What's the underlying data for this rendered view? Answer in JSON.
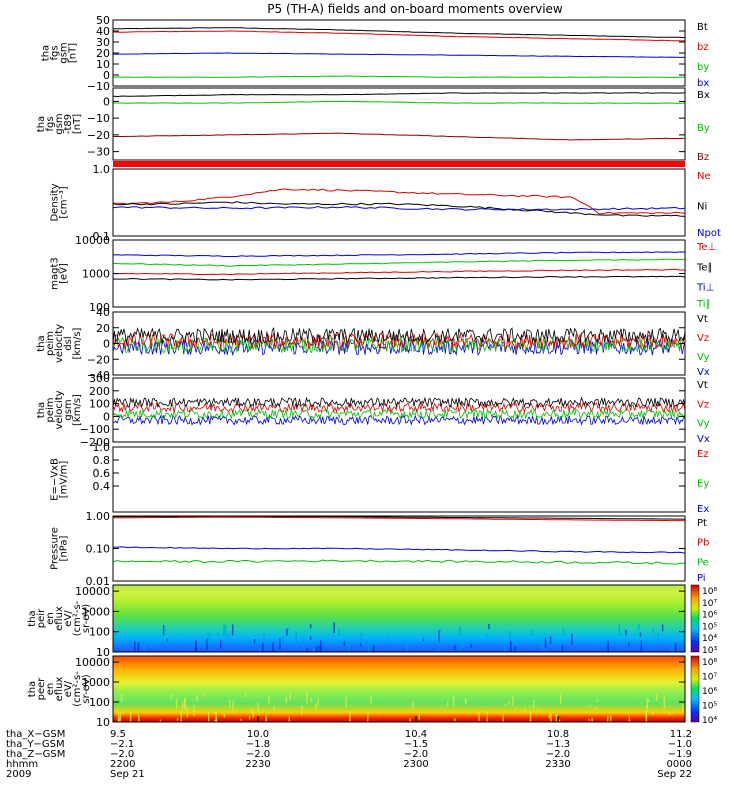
{
  "title": "P5 (TH-A) fields and on-board moments overview",
  "colors": {
    "black": "#000000",
    "red": "#e00000",
    "green": "#00e000",
    "blue": "#0000e0",
    "darkred": "#900000",
    "bar": "#ff0000"
  },
  "chart_data": [
    {
      "type": "line",
      "ylabel": [
        "tha",
        "fgs",
        "gsm",
        "[nT]"
      ],
      "ylim": [
        -10,
        50
      ],
      "yticks": [
        "50",
        "40",
        "30",
        "20",
        "10",
        "0",
        "−10"
      ],
      "ytick_values": [
        50,
        40,
        30,
        20,
        10,
        0,
        -10
      ],
      "legend": [
        {
          "name": "Bt",
          "color": "#000000"
        },
        {
          "name": "bz",
          "color": "#e00000"
        },
        {
          "name": "by",
          "color": "#00c000"
        },
        {
          "name": "bx",
          "color": "#0000e0"
        }
      ],
      "series": [
        {
          "name": "Bt",
          "color": "#000000",
          "x": [
            0,
            0.2,
            0.4,
            0.6,
            0.8,
            1.0
          ],
          "y": [
            42,
            43,
            41,
            38,
            36,
            34
          ]
        },
        {
          "name": "bz",
          "color": "#e00000",
          "x": [
            0,
            0.2,
            0.4,
            0.6,
            0.8,
            1.0
          ],
          "y": [
            39,
            40,
            38,
            35,
            33,
            31
          ]
        },
        {
          "name": "by",
          "color": "#00c000",
          "x": [
            0,
            0.2,
            0.4,
            0.6,
            0.8,
            1.0
          ],
          "y": [
            -2,
            -2,
            -1,
            -2,
            -2,
            -2
          ]
        },
        {
          "name": "bx",
          "color": "#0000e0",
          "x": [
            0,
            0.2,
            0.4,
            0.6,
            0.8,
            1.0
          ],
          "y": [
            19,
            20,
            19,
            18,
            17,
            16
          ]
        }
      ]
    },
    {
      "type": "line",
      "ylabel": [
        "tha",
        "fgs",
        "gsm",
        "-t89",
        "[nT]"
      ],
      "ylim": [
        -35,
        8
      ],
      "yticks": [
        "0",
        "−10",
        "−20",
        "−30"
      ],
      "ytick_values": [
        0,
        -10,
        -20,
        -30
      ],
      "legend": [
        {
          "name": "Bx",
          "color": "#000000"
        },
        {
          "name": "By",
          "color": "#00c000"
        },
        {
          "name": "Bz",
          "color": "#900000"
        }
      ],
      "series": [
        {
          "name": "Bx",
          "color": "#000000",
          "x": [
            0,
            0.2,
            0.4,
            0.6,
            0.8,
            1.0
          ],
          "y": [
            3,
            4,
            4,
            5,
            5,
            5
          ]
        },
        {
          "name": "By",
          "color": "#00c000",
          "x": [
            0,
            0.2,
            0.4,
            0.6,
            0.8,
            1.0
          ],
          "y": [
            -1,
            -1,
            0,
            -1,
            -1,
            -1
          ]
        },
        {
          "name": "Bz",
          "color": "#900000",
          "x": [
            0,
            0.2,
            0.4,
            0.6,
            0.8,
            1.0
          ],
          "y": [
            -21,
            -20,
            -19,
            -21,
            -23,
            -22
          ]
        }
      ]
    },
    {
      "type": "line",
      "ylabel": [
        "Density",
        "[cm⁻³]"
      ],
      "ylim": [
        0.1,
        1.0
      ],
      "log": true,
      "yticks": [
        "1.0",
        "0.1"
      ],
      "ytick_values": [
        1.0,
        0.1
      ],
      "legend": [
        {
          "name": "Ne",
          "color": "#e00000"
        },
        {
          "name": "Ni",
          "color": "#000000"
        },
        {
          "name": "Npot",
          "color": "#0000e0"
        }
      ],
      "series": [
        {
          "name": "Ne",
          "color": "#e00000",
          "x": [
            0,
            0.1,
            0.2,
            0.3,
            0.4,
            0.5,
            0.6,
            0.7,
            0.8,
            0.85,
            0.9,
            1.0
          ],
          "y": [
            0.3,
            0.32,
            0.38,
            0.5,
            0.48,
            0.45,
            0.42,
            0.4,
            0.38,
            0.22,
            0.22,
            0.22
          ]
        },
        {
          "name": "Ni",
          "color": "#000000",
          "x": [
            0,
            0.1,
            0.2,
            0.3,
            0.4,
            0.5,
            0.6,
            0.7,
            0.8,
            0.9,
            1.0
          ],
          "y": [
            0.3,
            0.3,
            0.32,
            0.3,
            0.3,
            0.3,
            0.28,
            0.25,
            0.22,
            0.2,
            0.2
          ]
        },
        {
          "name": "Npot",
          "color": "#0000e0",
          "x": [
            0,
            0.2,
            0.4,
            0.6,
            0.8,
            1.0
          ],
          "y": [
            0.27,
            0.26,
            0.27,
            0.25,
            0.25,
            0.26
          ]
        }
      ]
    },
    {
      "type": "line",
      "ylabel": [
        "magt3",
        "[eV]"
      ],
      "ylim": [
        100,
        10000
      ],
      "log": true,
      "yticks": [
        "10000",
        "1000",
        "100"
      ],
      "ytick_values": [
        10000,
        1000,
        100
      ],
      "legend": [
        {
          "name": "Te⊥",
          "color": "#e00000"
        },
        {
          "name": "Te∥",
          "color": "#000000"
        },
        {
          "name": "Ti⊥",
          "color": "#0000e0"
        },
        {
          "name": "Ti∥",
          "color": "#00c000"
        }
      ],
      "series": [
        {
          "name": "Ti⊥",
          "color": "#0000e0",
          "x": [
            0,
            0.2,
            0.4,
            0.6,
            0.8,
            1.0
          ],
          "y": [
            3600,
            3300,
            3500,
            3800,
            4200,
            4400
          ]
        },
        {
          "name": "Ti∥",
          "color": "#00c000",
          "x": [
            0,
            0.2,
            0.4,
            0.6,
            0.8,
            1.0
          ],
          "y": [
            2000,
            1700,
            1900,
            2200,
            2500,
            2600
          ]
        },
        {
          "name": "Te⊥",
          "color": "#e00000",
          "x": [
            0,
            0.2,
            0.4,
            0.6,
            0.8,
            1.0
          ],
          "y": [
            1000,
            950,
            1050,
            1150,
            1250,
            1300
          ]
        },
        {
          "name": "Te∥",
          "color": "#000000",
          "x": [
            0,
            0.2,
            0.4,
            0.6,
            0.8,
            1.0
          ],
          "y": [
            700,
            650,
            700,
            750,
            800,
            800
          ]
        }
      ]
    },
    {
      "type": "line",
      "ylabel": [
        "tha",
        "peim",
        "velocity",
        "dsl",
        "[km/s]"
      ],
      "ylim": [
        -40,
        40
      ],
      "yticks": [
        "40",
        "20",
        "0",
        "−20",
        "−40"
      ],
      "ytick_values": [
        40,
        20,
        0,
        -20,
        -40
      ],
      "legend": [
        {
          "name": "Vt",
          "color": "#000000"
        },
        {
          "name": "Vz",
          "color": "#e00000"
        },
        {
          "name": "Vy",
          "color": "#00c000"
        },
        {
          "name": "Vx",
          "color": "#0000e0"
        }
      ],
      "series": [
        {
          "name": "Vx",
          "color": "#0000e0",
          "x": [
            0,
            1.0
          ],
          "y": [
            -5,
            -5
          ]
        },
        {
          "name": "Vy",
          "color": "#00c000",
          "x": [
            0,
            1.0
          ],
          "y": [
            -2,
            -2
          ]
        },
        {
          "name": "Vz",
          "color": "#e00000",
          "x": [
            0,
            1.0
          ],
          "y": [
            3,
            3
          ]
        },
        {
          "name": "Vt",
          "color": "#000000",
          "x": [
            0,
            1.0
          ],
          "y": [
            10,
            10
          ]
        }
      ]
    },
    {
      "type": "line",
      "ylabel": [
        "tha",
        "peim",
        "velocity",
        "gsm",
        "[km/s]"
      ],
      "ylim": [
        -200,
        300
      ],
      "yticks": [
        "300",
        "200",
        "100",
        "0",
        "−100",
        "−200"
      ],
      "ytick_values": [
        300,
        200,
        100,
        0,
        -100,
        -200
      ],
      "legend": [
        {
          "name": "Vt",
          "color": "#000000"
        },
        {
          "name": "Vz",
          "color": "#e00000"
        },
        {
          "name": "Vy",
          "color": "#00c000"
        },
        {
          "name": "Vx",
          "color": "#0000e0"
        }
      ],
      "series": [
        {
          "name": "Vx",
          "color": "#0000e0",
          "x": [
            0,
            1.0
          ],
          "y": [
            -30,
            -30
          ]
        },
        {
          "name": "Vy",
          "color": "#00c000",
          "x": [
            0,
            1.0
          ],
          "y": [
            20,
            20
          ]
        },
        {
          "name": "Vz",
          "color": "#e00000",
          "x": [
            0,
            1.0
          ],
          "y": [
            70,
            70
          ]
        },
        {
          "name": "Vt",
          "color": "#000000",
          "x": [
            0,
            1.0
          ],
          "y": [
            110,
            110
          ]
        }
      ]
    },
    {
      "type": "line",
      "ylabel": [
        "E=−VxB",
        "[mV/m]"
      ],
      "ylim": [
        0,
        1.0
      ],
      "yticks": [
        "1.0",
        "0.8",
        "0.6",
        "0.4"
      ],
      "ytick_values": [
        1.0,
        0.8,
        0.6,
        0.4
      ],
      "legend": [
        {
          "name": "Ez",
          "color": "#e00000"
        },
        {
          "name": "Ey",
          "color": "#00c000"
        },
        {
          "name": "Ex",
          "color": "#0000e0"
        }
      ],
      "series": []
    },
    {
      "type": "line",
      "ylabel": [
        "Pressure",
        "[nPa]"
      ],
      "ylim": [
        0.01,
        1.0
      ],
      "log": true,
      "yticks": [
        "1.00",
        "0.10",
        "0.01"
      ],
      "ytick_values": [
        1.0,
        0.1,
        0.01
      ],
      "legend": [
        {
          "name": "Pt",
          "color": "#000000"
        },
        {
          "name": "Pb",
          "color": "#e00000"
        },
        {
          "name": "Pe",
          "color": "#00c000"
        },
        {
          "name": "Pi",
          "color": "#0000e0"
        }
      ],
      "series": [
        {
          "name": "Pt",
          "color": "#000000",
          "x": [
            0,
            0.2,
            0.4,
            0.6,
            0.8,
            1.0
          ],
          "y": [
            0.95,
            0.98,
            0.95,
            0.9,
            0.85,
            0.8
          ]
        },
        {
          "name": "Pb",
          "color": "#e00000",
          "x": [
            0,
            0.2,
            0.4,
            0.6,
            0.8,
            1.0
          ],
          "y": [
            0.88,
            0.92,
            0.88,
            0.82,
            0.76,
            0.72
          ]
        },
        {
          "name": "Pi",
          "color": "#0000e0",
          "x": [
            0,
            0.2,
            0.4,
            0.6,
            0.8,
            1.0
          ],
          "y": [
            0.11,
            0.1,
            0.1,
            0.09,
            0.08,
            0.075
          ]
        },
        {
          "name": "Pe",
          "color": "#00c000",
          "x": [
            0,
            0.2,
            0.4,
            0.6,
            0.8,
            1.0
          ],
          "y": [
            0.04,
            0.04,
            0.042,
            0.04,
            0.038,
            0.035
          ]
        }
      ]
    },
    {
      "type": "heatmap",
      "ylabel": [
        "tha",
        "peir",
        "en",
        "eflux",
        "eV/",
        "(cm²-s-",
        "sr-eV)"
      ],
      "ylim": [
        10,
        20000
      ],
      "log": true,
      "yticks": [
        "10000",
        "1000",
        "100",
        "10"
      ],
      "ytick_values": [
        10000,
        1000,
        100,
        10
      ],
      "colorbar": [
        "10⁸",
        "10⁷",
        "10⁶",
        "10⁵",
        "10⁴",
        "10³"
      ]
    },
    {
      "type": "heatmap",
      "ylabel": [
        "tha",
        "peer",
        "en",
        "eflux",
        "eV/",
        "(cm²-s-",
        "sr-eV)"
      ],
      "ylim": [
        10,
        20000
      ],
      "log": true,
      "yticks": [
        "10000",
        "1000",
        "100",
        "10"
      ],
      "ytick_values": [
        10000,
        1000,
        100,
        10
      ],
      "colorbar": [
        "10⁸",
        "10⁷",
        "10⁶",
        "10⁵",
        "10⁴"
      ]
    }
  ],
  "xaxis": {
    "rows": [
      {
        "label": "tha_X−GSM",
        "values": [
          "9.5",
          "10.0",
          "10.4",
          "10.8",
          "11.2"
        ]
      },
      {
        "label": "tha_Y−GSM",
        "values": [
          "−2.1",
          "−1.8",
          "−1.5",
          "−1.3",
          "−1.0"
        ]
      },
      {
        "label": "tha_Z−GSM",
        "values": [
          "−2.0",
          "−2.0",
          "−2.0",
          "−2.0",
          "−1.9"
        ]
      },
      {
        "label": "hhmm",
        "values": [
          "2200",
          "2230",
          "2300",
          "2330",
          "0000"
        ]
      },
      {
        "label": "2009",
        "values": [
          "Sep 21",
          "",
          "",
          "",
          "Sep 22"
        ]
      }
    ]
  }
}
